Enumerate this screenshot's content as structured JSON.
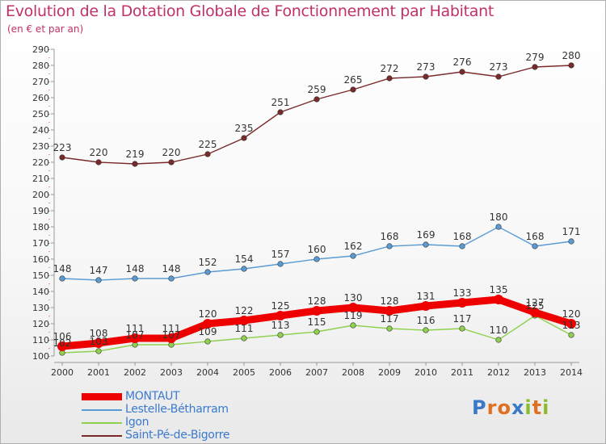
{
  "title": "Evolution de la Dotation Globale de Fonctionnement par Habitant",
  "subtitle": "(en € et par an)",
  "logo": {
    "text": "Proxiti",
    "letter_colors": [
      "#3a78c8",
      "#e07020",
      "#e07020",
      "#3a78c8",
      "#8bbb2a",
      "#e07020",
      "#8bbb2a"
    ]
  },
  "chart_data": {
    "type": "line",
    "x": [
      2000,
      2001,
      2002,
      2003,
      2004,
      2005,
      2006,
      2007,
      2008,
      2009,
      2010,
      2011,
      2012,
      2013,
      2014
    ],
    "ylim": [
      100,
      290
    ],
    "yticks": [
      100,
      110,
      120,
      130,
      140,
      150,
      160,
      170,
      180,
      190,
      200,
      210,
      220,
      230,
      240,
      250,
      260,
      270,
      280,
      290
    ],
    "grid": false,
    "legend_position": "bottom-left",
    "series": [
      {
        "name": "MONTAUT",
        "color": "#ee0000",
        "style": "thick",
        "values": [
          106,
          108,
          111,
          111,
          120,
          122,
          125,
          128,
          130,
          128,
          131,
          133,
          135,
          127,
          120
        ],
        "labels": [
          "106",
          "108",
          "111",
          "111",
          "120",
          "122",
          "125",
          "128",
          "130",
          "128",
          "131",
          "133",
          "135",
          "127",
          "120"
        ]
      },
      {
        "name": "Lestelle-Bétharram",
        "color": "#5b9bd5",
        "style": "thin",
        "values": [
          148,
          147,
          148,
          148,
          152,
          154,
          157,
          160,
          162,
          168,
          169,
          168,
          180,
          168,
          171
        ],
        "labels": [
          "148",
          "147",
          "148",
          "148",
          "152",
          "154",
          "157",
          "160",
          "162",
          "168",
          "169",
          "168",
          "180",
          "168",
          "171"
        ]
      },
      {
        "name": "Igon",
        "color": "#8fd14f",
        "style": "thin",
        "values": [
          102,
          103,
          107,
          107,
          109,
          111,
          113,
          115,
          119,
          117,
          116,
          117,
          110,
          125,
          113
        ],
        "labels": [
          "102",
          "103",
          "107",
          "107",
          "109",
          "111",
          "113",
          "115",
          "119",
          "117",
          "116",
          "117",
          "110",
          "125",
          "113"
        ]
      },
      {
        "name": "Saint-Pé-de-Bigorre",
        "color": "#7a2a2a",
        "style": "thin",
        "values": [
          223,
          220,
          219,
          220,
          225,
          235,
          251,
          259,
          265,
          272,
          273,
          276,
          273,
          279,
          280
        ],
        "labels": [
          "223",
          "220",
          "219",
          "220",
          "225",
          "235",
          "251",
          "259",
          "265",
          "272",
          "273",
          "276",
          "273",
          "279",
          "280"
        ]
      }
    ]
  }
}
